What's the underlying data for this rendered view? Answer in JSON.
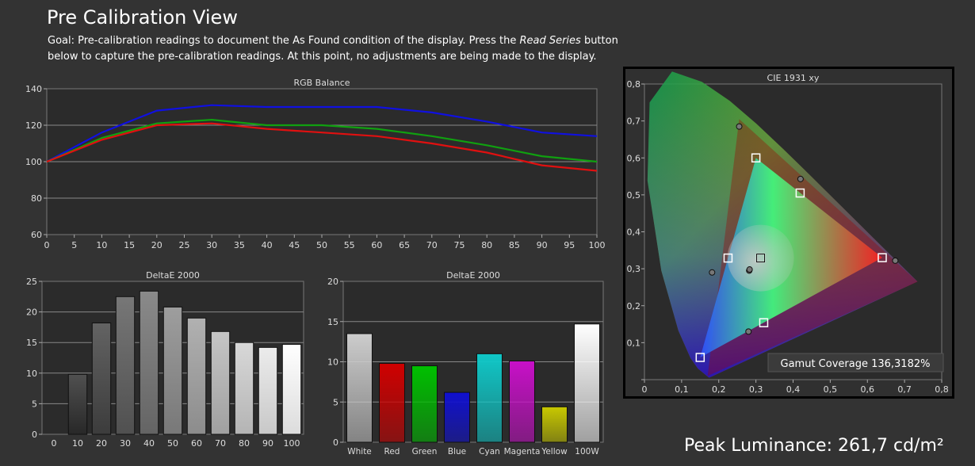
{
  "header": {
    "title": "Pre Calibration View",
    "goal_before": "Goal: Pre-calibration readings to document the As Found condition of the display. Press the ",
    "goal_emph": "Read Series",
    "goal_after": " button below to capture the pre-calibration readings. At this point, no adjustments are being made to the display."
  },
  "peak_luminance": "Peak Luminance: 261,7 cd/m²",
  "colors": {
    "background": "#333333",
    "plot_bg": "#2b2b2b",
    "red": "#e01010",
    "green": "#10a010",
    "blue": "#1010e0"
  },
  "chart_data": [
    {
      "id": "rgb",
      "type": "line",
      "title": "RGB Balance",
      "x": [
        0,
        10,
        20,
        30,
        40,
        50,
        60,
        70,
        80,
        90,
        100
      ],
      "xticks": [
        0,
        5,
        10,
        15,
        20,
        25,
        30,
        35,
        40,
        45,
        50,
        55,
        60,
        65,
        70,
        75,
        80,
        85,
        90,
        95,
        100
      ],
      "xlim": [
        0,
        100
      ],
      "ylim": [
        60,
        140
      ],
      "yticks": [
        60,
        80,
        100,
        120,
        140
      ],
      "grid": true,
      "series": [
        {
          "color": "#1010e0",
          "values": [
            100,
            116,
            128,
            131,
            130,
            130,
            130,
            127,
            122,
            116,
            114
          ]
        },
        {
          "color": "#10a010",
          "values": [
            100,
            113,
            121,
            123,
            120,
            120,
            118,
            114,
            109,
            103,
            100
          ]
        },
        {
          "color": "#e01010",
          "values": [
            100,
            112,
            120,
            121,
            118,
            116,
            114,
            110,
            105,
            98,
            95
          ]
        }
      ]
    },
    {
      "id": "grayscale",
      "type": "bar",
      "title": "DeltaE 2000",
      "categories": [
        "0",
        "10",
        "20",
        "30",
        "40",
        "50",
        "60",
        "70",
        "80",
        "90",
        "100"
      ],
      "values": [
        0,
        9.8,
        18.2,
        22.5,
        23.4,
        20.8,
        19,
        16.8,
        15,
        14.2,
        14.7
      ],
      "ylim": [
        0,
        25
      ],
      "yticks": [
        0,
        5,
        10,
        15,
        20,
        25
      ],
      "grid": true
    },
    {
      "id": "colors",
      "type": "bar",
      "title": "DeltaE 2000",
      "categories": [
        "White",
        "Red",
        "Green",
        "Blue",
        "Cyan",
        "Magenta",
        "Yellow",
        "100W"
      ],
      "values": [
        13.5,
        9.8,
        9.5,
        6.2,
        11,
        10.1,
        4.4,
        14.7
      ],
      "bar_colors": [
        "#cccccc",
        "#d00000",
        "#00c000",
        "#1010d0",
        "#10c8c8",
        "#c810c8",
        "#c8c800",
        "#ffffff"
      ],
      "ylim": [
        0,
        20
      ],
      "yticks": [
        0,
        5,
        10,
        15,
        20
      ],
      "grid": true
    },
    {
      "id": "cie",
      "type": "scatter",
      "title": "CIE 1931 xy",
      "xlim": [
        0,
        0.8
      ],
      "ylim": [
        0,
        0.8
      ],
      "ticks": [
        "0",
        "0,1",
        "0,2",
        "0,3",
        "0,4",
        "0,5",
        "0,6",
        "0,7",
        "0,8"
      ],
      "target_gamut": [
        [
          0.64,
          0.33
        ],
        [
          0.3,
          0.6
        ],
        [
          0.15,
          0.06
        ]
      ],
      "measured_gamut": [
        [
          0.735,
          0.265
        ],
        [
          0.255,
          0.705
        ],
        [
          0.17,
          0.01
        ]
      ],
      "targets": [
        [
          0.64,
          0.33
        ],
        [
          0.3,
          0.6
        ],
        [
          0.15,
          0.06
        ],
        [
          0.225,
          0.329
        ],
        [
          0.321,
          0.154
        ],
        [
          0.419,
          0.505
        ],
        [
          0.3127,
          0.329
        ]
      ],
      "measured": [
        [
          0.675,
          0.322
        ],
        [
          0.255,
          0.685
        ],
        [
          0.42,
          0.543
        ],
        [
          0.182,
          0.29
        ],
        [
          0.282,
          0.295
        ],
        [
          0.283,
          0.298
        ],
        [
          0.28,
          0.13
        ]
      ],
      "gamut_coverage": "Gamut Coverage 136,3182%"
    }
  ]
}
